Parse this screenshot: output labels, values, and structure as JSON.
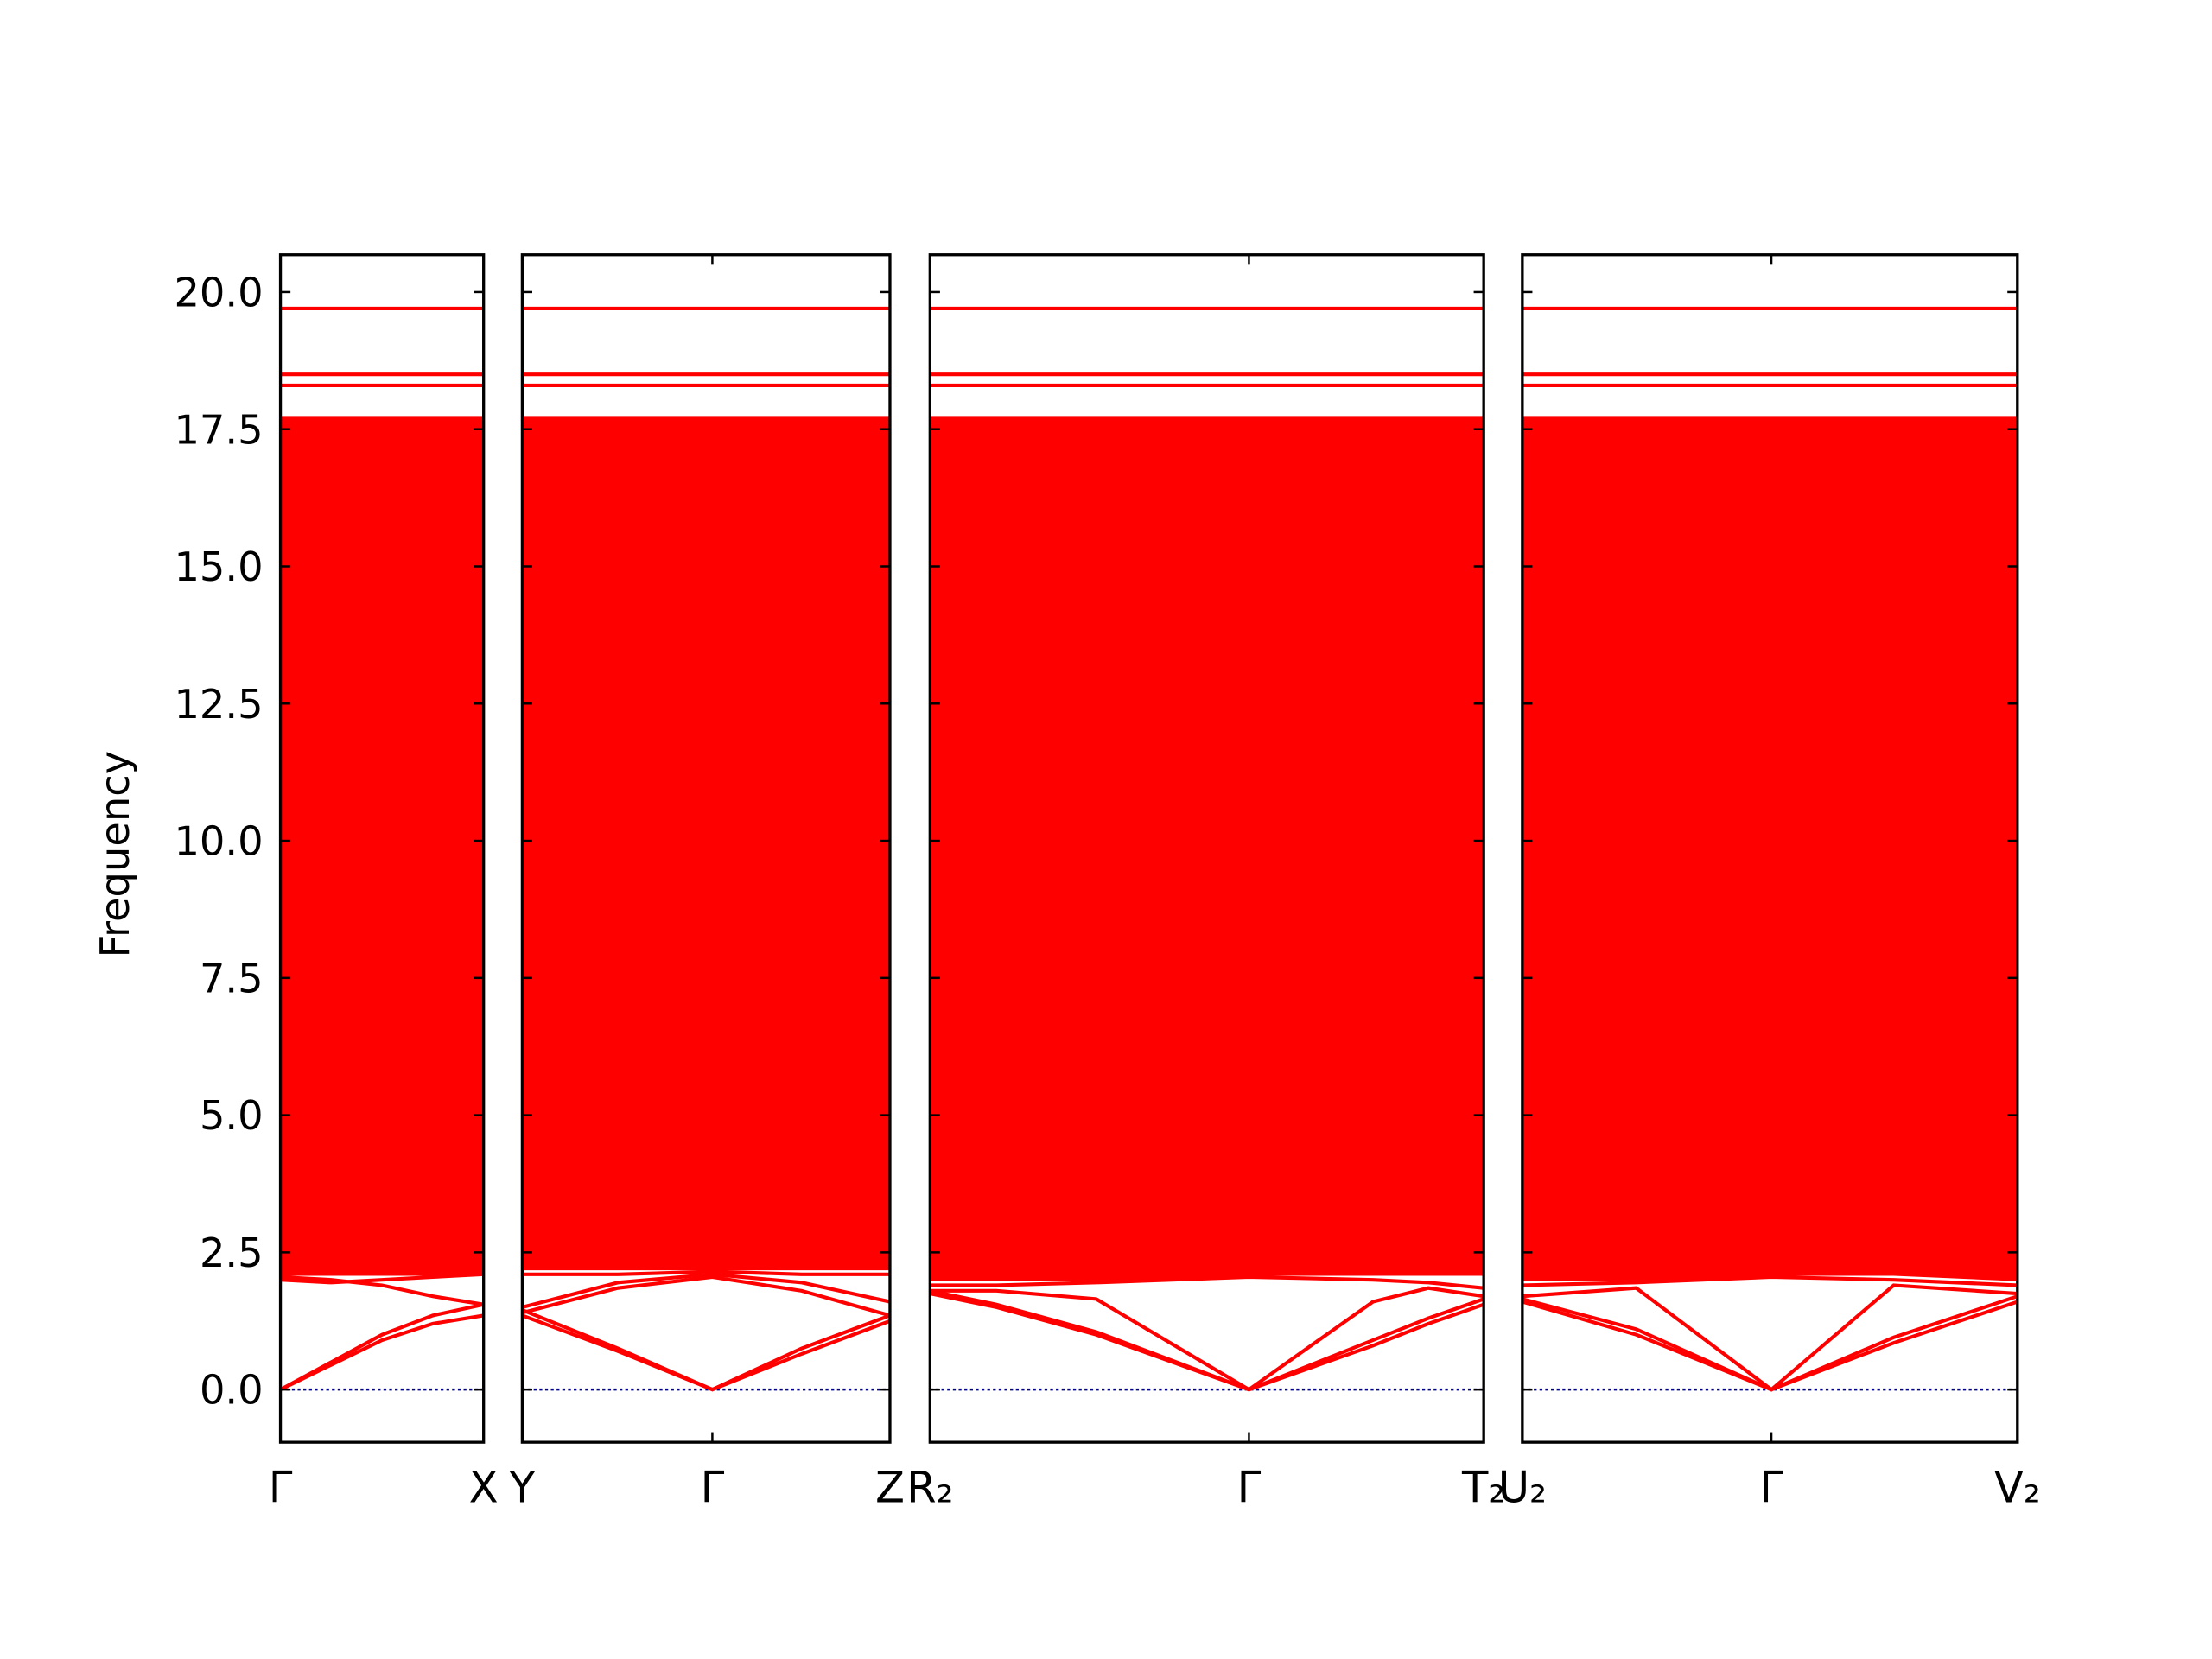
{
  "chart_data": {
    "type": "line",
    "ylabel": "Frequency",
    "ylim": [
      -0.96,
      20.68
    ],
    "yticks": [
      {
        "value": 0,
        "label": "0.0"
      },
      {
        "value": 2.5,
        "label": "2.5"
      },
      {
        "value": 5,
        "label": "5.0"
      },
      {
        "value": 7.5,
        "label": "7.5"
      },
      {
        "value": 10,
        "label": "10.0"
      },
      {
        "value": 12.5,
        "label": "12.5"
      },
      {
        "value": 15,
        "label": "15.0"
      },
      {
        "value": 17.5,
        "label": "17.5"
      },
      {
        "value": 20,
        "label": "20.0"
      }
    ],
    "zero_line": {
      "value": 0,
      "color": "#00008b"
    },
    "panels": [
      {
        "xlim": [
          0,
          1
        ],
        "xticks": [
          {
            "value": 0,
            "label": "Γ"
          },
          {
            "value": 1,
            "label": "X"
          }
        ],
        "x": [
          0,
          0.25,
          0.5,
          0.75,
          1
        ],
        "continuum": {
          "color": "#ff0000",
          "lower": [
            2.1,
            2.1,
            2.1,
            2.1,
            2.1
          ],
          "upper": [
            17.7,
            17.7,
            17.7,
            17.7,
            17.7
          ]
        },
        "series": [
          {
            "color": "#ff0000",
            "values": [
              0,
              0.45,
              0.9,
              1.2,
              1.35
            ]
          },
          {
            "color": "#ff0000",
            "values": [
              0,
              0.5,
              1.0,
              1.35,
              1.55
            ]
          },
          {
            "color": "#ff0000",
            "values": [
              2.05,
              2.0,
              1.9,
              1.7,
              1.55
            ]
          },
          {
            "color": "#ff0000",
            "values": [
              2.0,
              1.95,
              2.0,
              2.05,
              2.1
            ]
          },
          {
            "color": "#ff0000",
            "values": [
              18.3,
              18.3,
              18.3,
              18.3,
              18.3
            ]
          },
          {
            "color": "#ff0000",
            "values": [
              18.5,
              18.5,
              18.5,
              18.5,
              18.5
            ]
          },
          {
            "color": "#ff0000",
            "values": [
              19.7,
              19.7,
              19.7,
              19.7,
              19.7
            ]
          }
        ]
      },
      {
        "xlim": [
          0,
          1
        ],
        "xticks": [
          {
            "value": 0,
            "label": "Y"
          },
          {
            "value": 0.517,
            "label": "Γ"
          },
          {
            "value": 1,
            "label": "Z"
          }
        ],
        "x": [
          0,
          0.26,
          0.517,
          0.76,
          1
        ],
        "continuum": {
          "color": "#ff0000",
          "lower": [
            2.2,
            2.2,
            2.2,
            2.2,
            2.2
          ],
          "upper": [
            17.7,
            17.7,
            17.7,
            17.7,
            17.7
          ]
        },
        "series": [
          {
            "color": "#ff0000",
            "values": [
              1.35,
              0.7,
              0,
              0.65,
              1.25
            ]
          },
          {
            "color": "#ff0000",
            "values": [
              1.45,
              0.75,
              0,
              0.75,
              1.35
            ]
          },
          {
            "color": "#ff0000",
            "values": [
              1.4,
              1.85,
              2.05,
              1.8,
              1.35
            ]
          },
          {
            "color": "#ff0000",
            "values": [
              1.5,
              1.95,
              2.1,
              1.95,
              1.6
            ]
          },
          {
            "color": "#ff0000",
            "values": [
              2.1,
              2.1,
              2.15,
              2.1,
              2.1
            ]
          },
          {
            "color": "#ff0000",
            "values": [
              18.3,
              18.3,
              18.3,
              18.3,
              18.3
            ]
          },
          {
            "color": "#ff0000",
            "values": [
              18.5,
              18.5,
              18.5,
              18.5,
              18.5
            ]
          },
          {
            "color": "#ff0000",
            "values": [
              19.7,
              19.7,
              19.7,
              19.7,
              19.7
            ]
          }
        ]
      },
      {
        "xlim": [
          0,
          1
        ],
        "xticks": [
          {
            "value": 0,
            "label": "R₂"
          },
          {
            "value": 0.576,
            "label": "Γ"
          },
          {
            "value": 1,
            "label": "T₂"
          }
        ],
        "x": [
          0,
          0.12,
          0.3,
          0.576,
          0.8,
          0.9,
          1
        ],
        "continuum": {
          "color": "#ff0000",
          "lower": [
            2.0,
            2.0,
            2.0,
            2.1,
            2.1,
            2.1,
            2.1
          ],
          "upper": [
            17.7,
            17.7,
            17.7,
            17.7,
            17.7,
            17.7,
            17.7
          ]
        },
        "series": [
          {
            "color": "#ff0000",
            "values": [
              1.75,
              1.5,
              1.0,
              0,
              0.8,
              1.2,
              1.55
            ]
          },
          {
            "color": "#ff0000",
            "values": [
              1.8,
              1.55,
              1.05,
              0,
              0.9,
              1.3,
              1.65
            ]
          },
          {
            "color": "#ff0000",
            "values": [
              1.8,
              1.8,
              1.65,
              0,
              1.6,
              1.85,
              1.7
            ]
          },
          {
            "color": "#ff0000",
            "values": [
              1.9,
              1.9,
              1.95,
              2.05,
              2.0,
              1.95,
              1.85
            ]
          },
          {
            "color": "#ff0000",
            "values": [
              18.3,
              18.3,
              18.3,
              18.3,
              18.3,
              18.3,
              18.3
            ]
          },
          {
            "color": "#ff0000",
            "values": [
              18.5,
              18.5,
              18.5,
              18.5,
              18.5,
              18.5,
              18.5
            ]
          },
          {
            "color": "#ff0000",
            "values": [
              19.7,
              19.7,
              19.7,
              19.7,
              19.7,
              19.7,
              19.7
            ]
          }
        ]
      },
      {
        "xlim": [
          0,
          1
        ],
        "xticks": [
          {
            "value": 0,
            "label": "U₂"
          },
          {
            "value": 0.503,
            "label": "Γ"
          },
          {
            "value": 1,
            "label": "V₂"
          }
        ],
        "x": [
          0,
          0.23,
          0.503,
          0.75,
          1
        ],
        "continuum": {
          "color": "#ff0000",
          "lower": [
            2.0,
            2.0,
            2.1,
            2.1,
            2.0
          ],
          "upper": [
            17.7,
            17.7,
            17.7,
            17.7,
            17.7
          ]
        },
        "series": [
          {
            "color": "#ff0000",
            "values": [
              1.6,
              1.0,
              0,
              0.85,
              1.6
            ]
          },
          {
            "color": "#ff0000",
            "values": [
              1.7,
              1.85,
              0,
              0.95,
              1.7
            ]
          },
          {
            "color": "#ff0000",
            "values": [
              1.65,
              1.1,
              0,
              1.9,
              1.75
            ]
          },
          {
            "color": "#ff0000",
            "values": [
              1.9,
              1.95,
              2.05,
              2.0,
              1.9
            ]
          },
          {
            "color": "#ff0000",
            "values": [
              18.3,
              18.3,
              18.3,
              18.3,
              18.3
            ]
          },
          {
            "color": "#ff0000",
            "values": [
              18.5,
              18.5,
              18.5,
              18.5,
              18.5
            ]
          },
          {
            "color": "#ff0000",
            "values": [
              19.7,
              19.7,
              19.7,
              19.7,
              19.7
            ]
          }
        ]
      }
    ]
  }
}
